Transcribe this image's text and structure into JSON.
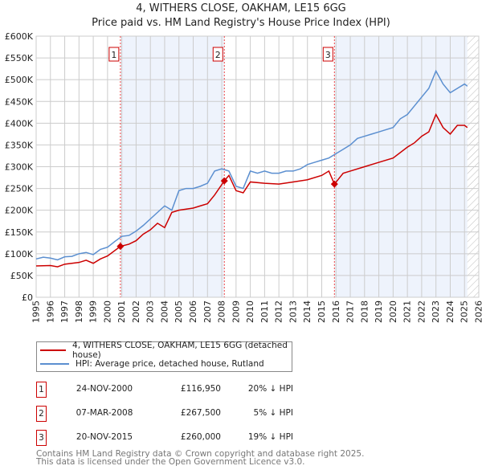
{
  "title": "4, WITHERS CLOSE, OAKHAM, LE15 6GG",
  "subtitle": "Price paid vs. HM Land Registry's House Price Index (HPI)",
  "chart_data": {
    "type": "line",
    "title": "4, WITHERS CLOSE, OAKHAM, LE15 6GG",
    "subtitle": "Price paid vs. HM Land Registry's House Price Index (HPI)",
    "xlim": [
      1995,
      2026
    ],
    "ylim": [
      0,
      600000
    ],
    "yticks": [
      0,
      50000,
      100000,
      150000,
      200000,
      250000,
      300000,
      350000,
      400000,
      450000,
      500000,
      550000,
      600000
    ],
    "ytick_labels": [
      "£0",
      "£50K",
      "£100K",
      "£150K",
      "£200K",
      "£250K",
      "£300K",
      "£350K",
      "£400K",
      "£450K",
      "£500K",
      "£550K",
      "£600K"
    ],
    "xticks": [
      1995,
      1996,
      1997,
      1998,
      1999,
      2000,
      2001,
      2002,
      2003,
      2004,
      2005,
      2006,
      2007,
      2008,
      2009,
      2010,
      2011,
      2012,
      2013,
      2014,
      2015,
      2016,
      2017,
      2018,
      2019,
      2020,
      2021,
      2022,
      2023,
      2024,
      2025,
      2026
    ],
    "grid": true,
    "series": [
      {
        "name": "4, WITHERS CLOSE, OAKHAM, LE15 6GG (detached house)",
        "color": "#cc0000",
        "x": [
          1995,
          1996,
          1996.5,
          1997,
          1998,
          1998.5,
          1999,
          1999.5,
          2000,
          2000.9,
          2001.5,
          2002,
          2002.5,
          2003,
          2003.5,
          2004,
          2004.5,
          2005,
          2006,
          2006.5,
          2007,
          2007.5,
          2008.18,
          2008.5,
          2009,
          2009.5,
          2010,
          2011,
          2012,
          2013,
          2014,
          2015,
          2015.5,
          2015.89,
          2016.5,
          2017,
          2018,
          2019,
          2020,
          2021,
          2021.5,
          2022,
          2022.5,
          2023,
          2023.5,
          2024,
          2024.5,
          2025,
          2025.2
        ],
        "y": [
          72000,
          73000,
          70000,
          76000,
          80000,
          85000,
          78000,
          88000,
          95000,
          116950,
          122000,
          130000,
          145000,
          155000,
          170000,
          160000,
          195000,
          200000,
          205000,
          210000,
          215000,
          235000,
          267500,
          280000,
          245000,
          240000,
          265000,
          262000,
          260000,
          265000,
          270000,
          280000,
          290000,
          260000,
          285000,
          290000,
          300000,
          310000,
          320000,
          345000,
          355000,
          370000,
          380000,
          420000,
          390000,
          375000,
          395000,
          395000,
          390000
        ]
      },
      {
        "name": "HPI: Average price, detached house, Rutland",
        "color": "#5b8fd0",
        "x": [
          1995,
          1995.5,
          1996,
          1996.5,
          1997,
          1997.5,
          1998,
          1998.5,
          1999,
          1999.5,
          2000,
          2000.5,
          2001,
          2001.5,
          2002,
          2002.5,
          2003,
          2003.5,
          2004,
          2004.5,
          2005,
          2005.5,
          2006,
          2006.5,
          2007,
          2007.5,
          2008,
          2008.5,
          2009,
          2009.5,
          2010,
          2010.5,
          2011,
          2011.5,
          2012,
          2012.5,
          2013,
          2013.5,
          2014,
          2014.5,
          2015,
          2015.5,
          2016,
          2016.5,
          2017,
          2017.5,
          2018,
          2018.5,
          2019,
          2019.5,
          2020,
          2020.5,
          2021,
          2021.5,
          2022,
          2022.5,
          2023,
          2023.5,
          2024,
          2024.5,
          2025,
          2025.2
        ],
        "y": [
          88000,
          92000,
          90000,
          86000,
          93000,
          94000,
          100000,
          103000,
          98000,
          110000,
          115000,
          128000,
          140000,
          142000,
          152000,
          165000,
          180000,
          195000,
          210000,
          200000,
          245000,
          250000,
          250000,
          255000,
          262000,
          290000,
          295000,
          290000,
          255000,
          250000,
          290000,
          285000,
          290000,
          285000,
          285000,
          290000,
          290000,
          295000,
          305000,
          310000,
          315000,
          320000,
          330000,
          340000,
          350000,
          365000,
          370000,
          375000,
          380000,
          385000,
          390000,
          410000,
          420000,
          440000,
          460000,
          480000,
          520000,
          490000,
          470000,
          480000,
          490000,
          485000
        ]
      }
    ],
    "annotations": [
      {
        "label": "1",
        "x": 2000.9,
        "y": 116950
      },
      {
        "label": "2",
        "x": 2008.18,
        "y": 267500
      },
      {
        "label": "3",
        "x": 2015.89,
        "y": 260000
      }
    ],
    "shaded_ranges": [
      [
        2000.9,
        2008.18
      ],
      [
        2015.89,
        2025.2
      ]
    ],
    "hatched_range": [
      2025.2,
      2026
    ],
    "legend_position": "below"
  },
  "legend": [
    "4, WITHERS CLOSE, OAKHAM, LE15 6GG (detached house)",
    "HPI: Average price, detached house, Rutland"
  ],
  "sales": [
    {
      "num": "1",
      "date": "24-NOV-2000",
      "price": "£116,950",
      "hpi": "20% ↓ HPI"
    },
    {
      "num": "2",
      "date": "07-MAR-2008",
      "price": "£267,500",
      "hpi": "5% ↓ HPI"
    },
    {
      "num": "3",
      "date": "20-NOV-2015",
      "price": "£260,000",
      "hpi": "19% ↓ HPI"
    }
  ],
  "footer": [
    "Contains HM Land Registry data © Crown copyright and database right 2025.",
    "This data is licensed under the Open Government Licence v3.0."
  ]
}
